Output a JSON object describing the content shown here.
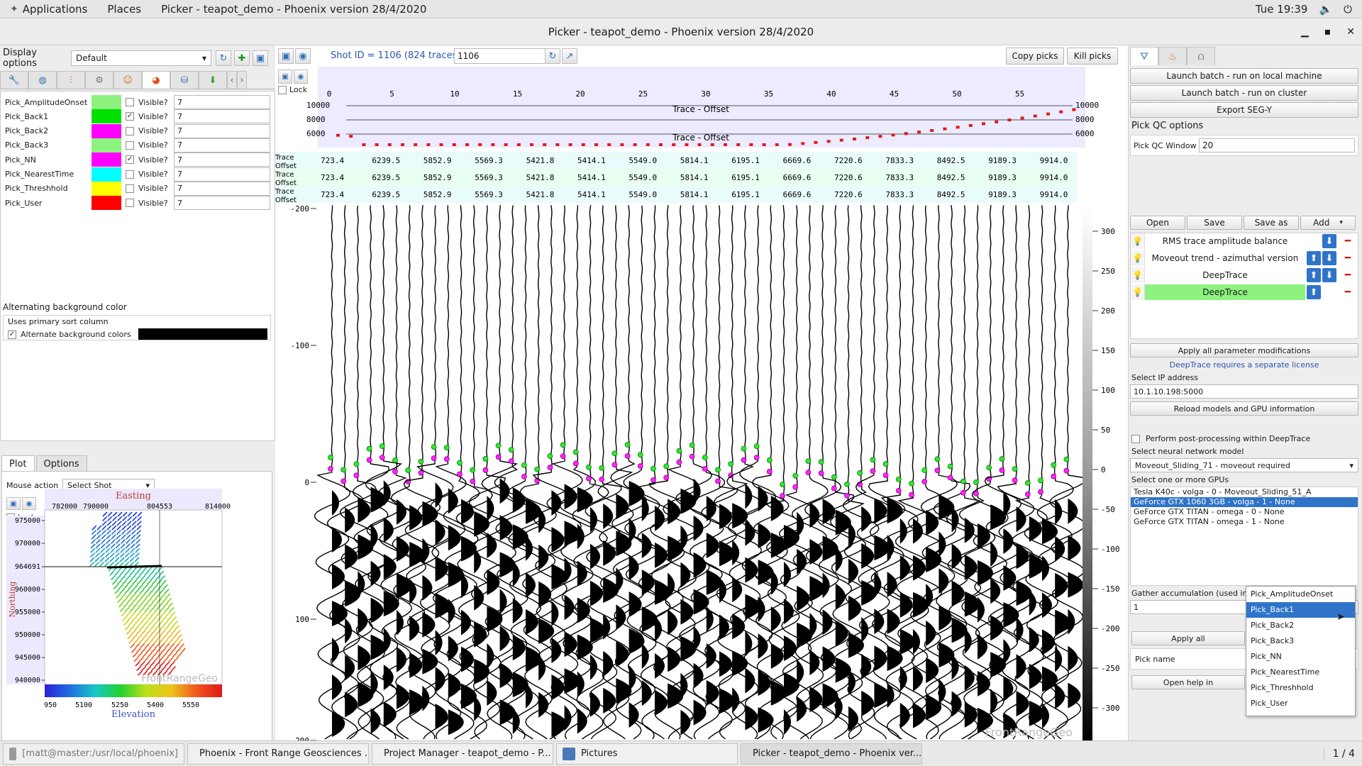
{
  "sysbar": {
    "applications": "Applications",
    "places": "Places",
    "window_title": "Picker - teapot_demo - Phoenix version 28/4/2020",
    "clock": "Tue 19:39"
  },
  "window": {
    "title": "Picker - teapot_demo - Phoenix version 28/4/2020"
  },
  "left": {
    "display_options_label": "Display options",
    "display_options_value": "Default",
    "picks": [
      {
        "name": "Pick_AmplitudeOnset",
        "color": "#8ef27f",
        "checked": "",
        "visible_label": "Visible?",
        "value": "7"
      },
      {
        "name": "Pick_Back1",
        "color": "#00e100",
        "checked": "✓",
        "visible_label": "Visible?",
        "value": "7"
      },
      {
        "name": "Pick_Back2",
        "color": "#ff00ff",
        "checked": "",
        "visible_label": "Visible?",
        "value": "7"
      },
      {
        "name": "Pick_Back3",
        "color": "#8ef27f",
        "checked": "",
        "visible_label": "Visible?",
        "value": "7"
      },
      {
        "name": "Pick_NN",
        "color": "#ff00ff",
        "checked": "✓",
        "visible_label": "Visible?",
        "value": "7"
      },
      {
        "name": "Pick_NearestTime",
        "color": "#00ffff",
        "checked": "",
        "visible_label": "Visible?",
        "value": "7"
      },
      {
        "name": "Pick_Threshhold",
        "color": "#ffff00",
        "checked": "",
        "visible_label": "Visible?",
        "value": "7"
      },
      {
        "name": "Pick_User",
        "color": "#ff0000",
        "checked": "",
        "visible_label": "Visible?",
        "value": "7"
      }
    ],
    "alt_bg_title": "Alternating background color",
    "uses_primary_sort": "Uses primary sort column",
    "alt_bg_label": "Alternate background colors",
    "alt_bg_color": "#000000",
    "tab_plot": "Plot",
    "tab_options": "Options",
    "mouse_action_label": "Mouse action",
    "mouse_action_value": "Select Shot",
    "lock_label": "Lock",
    "map": {
      "title": "Easting",
      "x_ticks": [
        "782000",
        "790000",
        "804553",
        "814000"
      ],
      "y_label": "Northing",
      "y_ticks": [
        "975000",
        "970000",
        "964691",
        "960000",
        "955000",
        "950000",
        "945000",
        "940000"
      ],
      "colorbar_ticks": [
        "950",
        "5100",
        "5250",
        "5400",
        "5550"
      ],
      "colorbar_label": "Elevation",
      "watermark": "FrontRangeGeo"
    }
  },
  "center": {
    "shot_id_label": "Shot ID = 1106 (824 traces)",
    "shot_id_value": "1106",
    "copy_picks": "Copy picks",
    "kill_picks": "Kill picks",
    "lock_label": "Lock",
    "header_axis_ticks": [
      "0",
      "5",
      "10",
      "15",
      "20",
      "25",
      "30",
      "35",
      "40",
      "45",
      "50",
      "55"
    ],
    "offset_plot_label_top": "Trace - Offset",
    "offset_plot_label_bottom": "Trace - Offset",
    "offset_left_ticks": [
      "10000",
      "8000",
      "6000"
    ],
    "offset_right_ticks": [
      "10000",
      "8000",
      "6000"
    ],
    "row_label_a": "Trace",
    "row_label_b": "Offset",
    "offset_values": [
      "723.4",
      "6239.5",
      "5852.9",
      "5569.3",
      "5421.8",
      "5414.1",
      "5549.0",
      "5814.1",
      "6195.1",
      "6669.6",
      "7220.6",
      "7833.3",
      "8492.5",
      "9189.3",
      "9914.0"
    ],
    "time_ticks": [
      "-200",
      "-100",
      "0",
      "100",
      "200"
    ],
    "amp_ticks": [
      "300",
      "250",
      "200",
      "150",
      "100",
      "50",
      "0",
      "-50",
      "-100",
      "-150",
      "-200",
      "-250",
      "-300"
    ],
    "watermark": "FrontRangeGeo"
  },
  "right": {
    "launch_local": "Launch batch - run on local machine",
    "launch_cluster": "Launch batch - run on cluster",
    "export_segy": "Export SEG-Y",
    "pick_qc_options": "Pick QC options",
    "pick_qc_window_label": "Pick QC Window",
    "pick_qc_window_value": "20",
    "open": "Open",
    "save": "Save",
    "save_as": "Save as",
    "add": "Add",
    "flows": [
      {
        "name": "RMS trace amplitude balance"
      },
      {
        "name": "Moveout trend - azimuthal version"
      },
      {
        "name": "DeepTrace"
      },
      {
        "name": "DeepTrace"
      }
    ],
    "apply_all_mods": "Apply all parameter modifications",
    "license_note": "DeepTrace requires a separate license",
    "select_ip_label": "Select IP address",
    "ip_value": "10.1.10.198:5000",
    "reload_models": "Reload models and GPU information",
    "postproc_label": "Perform post-processing within DeepTrace",
    "select_nn_label": "Select neural network model",
    "nn_value": "Moveout_Sliding_71 - moveout required",
    "select_gpus_label": "Select one or more GPUs",
    "gpus": [
      "Tesla K40c - volga - 0 - Moveout_Sliding_51_A",
      "GeForce GTX 1060 3GB - volga - 1 - None",
      "GeForce GTX TITAN - omega - 0 - None",
      "GeForce GTX TITAN - omega - 1 - None"
    ],
    "gather_accum_label": "Gather accumulation (used in batch only)",
    "gather_accum_value": "1",
    "apply_all_short": "Apply all",
    "pick_name_label": "Pick name",
    "open_help": "Open help in",
    "dropdown": [
      "Pick_AmplitudeOnset",
      "Pick_Back1",
      "Pick_Back2",
      "Pick_Back3",
      "Pick_NN",
      "Pick_NearestTime",
      "Pick_Threshhold",
      "Pick_User"
    ]
  },
  "taskbar": {
    "tasks": [
      "[matt@master:/usr/local/phoenix]",
      "Phoenix - Front Range Geosciences ...",
      "Project Manager - teapot_demo - P...",
      "Pictures",
      "Picker - teapot_demo - Phoenix ver..."
    ],
    "pager": "1 / 4"
  }
}
